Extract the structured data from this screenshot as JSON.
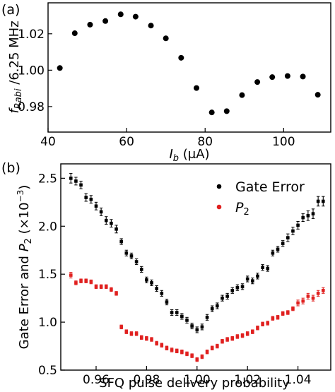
{
  "chart_data": [
    {
      "panel": "(a)",
      "type": "scatter",
      "xlabel": {
        "main": "I",
        "sub": "b",
        "unit": " (μA)"
      },
      "ylabel": {
        "main": "f",
        "sub": "Rabi",
        "unit": " /6.25 MHz"
      },
      "xlim": [
        40,
        112
      ],
      "ylim": [
        0.966,
        1.037
      ],
      "xticks": [
        40,
        60,
        80,
        100
      ],
      "yticks": [
        0.98,
        1.0,
        1.02
      ],
      "ytick_labels": [
        "0.98",
        "1.00",
        "1.02"
      ],
      "grid": false,
      "color": "#000000",
      "series": [
        {
          "x": [
            43,
            46.8,
            50.7,
            54.6,
            58.5,
            62.3,
            66.2,
            70,
            73.9,
            77.8,
            81.7,
            85.5,
            89.4,
            93.3,
            97.1,
            101,
            104.9,
            108.7
          ],
          "y": [
            1.0012,
            1.0203,
            1.025,
            1.027,
            1.0307,
            1.0294,
            1.0245,
            1.0175,
            1.0068,
            0.9902,
            0.9768,
            0.9775,
            0.9863,
            0.9935,
            0.9962,
            0.9968,
            0.9965,
            0.9865
          ]
        }
      ]
    },
    {
      "panel": "(b)",
      "type": "scatter",
      "xlabel": "SFQ pulse delivery probability",
      "ylabel": {
        "pre": "Gate Error and ",
        "main": "P",
        "sub": "2",
        "unit": " (×10",
        "sup": "−3",
        "close": ")"
      },
      "xlim": [
        0.946,
        1.053
      ],
      "ylim": [
        0.5,
        2.65
      ],
      "xticks": [
        0.96,
        0.98,
        1.0,
        1.02,
        1.04
      ],
      "xtick_labels": [
        "0.96",
        "0.98",
        "1.00",
        "1.02",
        "1.04"
      ],
      "yticks": [
        0.5,
        1.0,
        1.5,
        2.0,
        2.5
      ],
      "ytick_labels": [
        "0.5",
        "1.0",
        "1.5",
        "2.0",
        "2.5"
      ],
      "legend": "top-right",
      "grid": false,
      "x": [
        0.95,
        0.952,
        0.954,
        0.956,
        0.958,
        0.96,
        0.962,
        0.964,
        0.966,
        0.968,
        0.97,
        0.972,
        0.974,
        0.976,
        0.978,
        0.98,
        0.982,
        0.984,
        0.986,
        0.988,
        0.99,
        0.992,
        0.994,
        0.996,
        0.998,
        1.0,
        1.002,
        1.004,
        1.006,
        1.008,
        1.01,
        1.012,
        1.014,
        1.016,
        1.018,
        1.02,
        1.022,
        1.024,
        1.026,
        1.028,
        1.03,
        1.032,
        1.034,
        1.036,
        1.038,
        1.04,
        1.042,
        1.044,
        1.046,
        1.048,
        1.05
      ],
      "series": [
        {
          "name": "Gate Error",
          "color": "#000000",
          "values": [
            2.5,
            2.47,
            2.43,
            2.3,
            2.28,
            2.21,
            2.15,
            2.06,
            2.03,
            1.97,
            1.84,
            1.72,
            1.69,
            1.63,
            1.55,
            1.44,
            1.41,
            1.35,
            1.3,
            1.21,
            1.1,
            1.1,
            1.06,
            1.02,
            0.96,
            0.92,
            0.95,
            1.05,
            1.14,
            1.17,
            1.25,
            1.27,
            1.33,
            1.36,
            1.37,
            1.45,
            1.43,
            1.48,
            1.57,
            1.56,
            1.72,
            1.76,
            1.82,
            1.88,
            1.95,
            2.01,
            2.09,
            2.11,
            2.13,
            2.26,
            2.26
          ],
          "errors": [
            0.05,
            0.04,
            0.04,
            0.04,
            0.04,
            0.04,
            0.04,
            0.04,
            0.04,
            0.04,
            0.03,
            0.03,
            0.03,
            0.03,
            0.03,
            0.03,
            0.03,
            0.03,
            0.03,
            0.03,
            0.03,
            0.03,
            0.03,
            0.03,
            0.03,
            0.03,
            0.03,
            0.03,
            0.03,
            0.03,
            0.03,
            0.03,
            0.03,
            0.03,
            0.03,
            0.03,
            0.03,
            0.03,
            0.03,
            0.03,
            0.03,
            0.03,
            0.03,
            0.04,
            0.04,
            0.04,
            0.04,
            0.05,
            0.05,
            0.05,
            0.05
          ]
        },
        {
          "name": "P2",
          "name_main": "P",
          "name_sub": "2",
          "color": "#e0201f",
          "values": [
            1.49,
            1.41,
            1.43,
            1.43,
            1.42,
            1.37,
            1.37,
            1.37,
            1.34,
            1.3,
            0.95,
            0.9,
            0.88,
            0.88,
            0.84,
            0.83,
            0.82,
            0.78,
            0.76,
            0.73,
            0.71,
            0.7,
            0.69,
            0.67,
            0.65,
            0.61,
            0.64,
            0.69,
            0.73,
            0.75,
            0.8,
            0.82,
            0.83,
            0.85,
            0.86,
            0.88,
            0.9,
            0.94,
            0.98,
            0.99,
            1.04,
            1.05,
            1.09,
            1.1,
            1.14,
            1.2,
            1.22,
            1.27,
            1.25,
            1.3,
            1.33
          ],
          "errors": [
            0.03,
            0.02,
            0.02,
            0.02,
            0.02,
            0.02,
            0.02,
            0.02,
            0.02,
            0.02,
            0.02,
            0.02,
            0.02,
            0.02,
            0.02,
            0.02,
            0.02,
            0.02,
            0.02,
            0.02,
            0.02,
            0.02,
            0.02,
            0.02,
            0.02,
            0.02,
            0.02,
            0.02,
            0.02,
            0.02,
            0.02,
            0.02,
            0.02,
            0.02,
            0.02,
            0.02,
            0.02,
            0.02,
            0.02,
            0.02,
            0.02,
            0.02,
            0.02,
            0.02,
            0.02,
            0.03,
            0.03,
            0.03,
            0.03,
            0.03,
            0.03
          ]
        }
      ]
    }
  ]
}
